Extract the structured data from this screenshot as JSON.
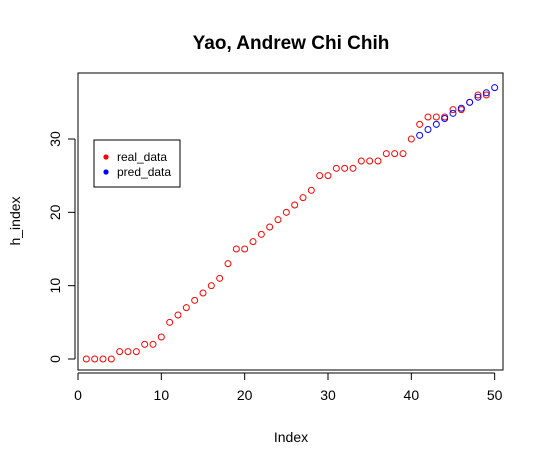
{
  "chart_data": {
    "type": "scatter",
    "title": "Yao, Andrew Chi Chih",
    "xlabel": "Index",
    "ylabel": "h_index",
    "xlim": [
      0,
      51
    ],
    "ylim": [
      -1.5,
      39
    ],
    "xticks": [
      0,
      10,
      20,
      30,
      40,
      50
    ],
    "yticks": [
      0,
      10,
      20,
      30
    ],
    "grid": false,
    "legend_position": "left",
    "series": [
      {
        "name": "real_data",
        "color": "#ff0000",
        "marker": "open-circle",
        "x": [
          1,
          2,
          3,
          4,
          5,
          6,
          7,
          8,
          9,
          10,
          11,
          12,
          13,
          14,
          15,
          16,
          17,
          18,
          19,
          20,
          21,
          22,
          23,
          24,
          25,
          26,
          27,
          28,
          29,
          30,
          31,
          32,
          33,
          34,
          35,
          36,
          37,
          38,
          39,
          40,
          41,
          42,
          43,
          44,
          45,
          46,
          47,
          48,
          49
        ],
        "values": [
          0,
          0,
          0,
          0,
          1,
          1,
          1,
          2,
          2,
          3,
          5,
          6,
          7,
          8,
          9,
          10,
          11,
          13,
          15,
          15,
          16,
          17,
          18,
          19,
          20,
          21,
          22,
          23,
          25,
          25,
          26,
          26,
          26,
          27,
          27,
          27,
          28,
          28,
          28,
          30,
          32,
          33,
          33,
          33,
          34,
          34,
          35,
          36,
          36
        ]
      },
      {
        "name": "pred_data",
        "color": "#0000ff",
        "marker": "open-circle",
        "x": [
          41,
          42,
          43,
          44,
          45,
          46,
          47,
          48,
          49,
          50
        ],
        "values": [
          30.5,
          31.3,
          32.0,
          32.8,
          33.5,
          34.2,
          35.0,
          35.7,
          36.3,
          37.0
        ]
      }
    ]
  }
}
